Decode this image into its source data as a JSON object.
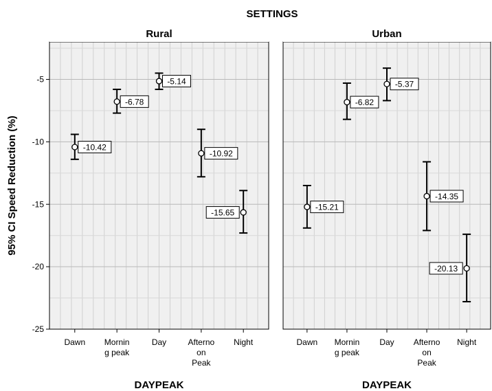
{
  "chart_data": {
    "type": "errorbar",
    "title": "SETTINGS",
    "ylabel": "95% CI Speed Reduction (%)",
    "ylim": [
      -25,
      -2
    ],
    "yticks": [
      -5,
      -10,
      -15,
      -20,
      -25
    ],
    "grid": true,
    "categories": [
      [
        "Dawn"
      ],
      [
        "Mornin",
        "g peak"
      ],
      [
        "Day"
      ],
      [
        "Afterno",
        "on",
        "Peak"
      ],
      [
        "Night"
      ]
    ],
    "panels": [
      {
        "name": "Rural",
        "xlabel": "DAYPEAK",
        "means": [
          -10.42,
          -6.78,
          -5.14,
          -10.92,
          -15.65
        ],
        "lower": [
          -11.4,
          -7.7,
          -5.8,
          -12.8,
          -17.3
        ],
        "upper": [
          -9.4,
          -5.8,
          -4.5,
          -9.0,
          -13.9
        ],
        "labels": [
          "-10.42",
          "-6.78",
          "-5.14",
          "-10.92",
          "-15.65"
        ],
        "label_side": [
          "right",
          "right",
          "right",
          "right",
          "left"
        ]
      },
      {
        "name": "Urban",
        "xlabel": "DAYPEAK",
        "means": [
          -15.21,
          -6.82,
          -5.37,
          -14.35,
          -20.13
        ],
        "lower": [
          -16.9,
          -8.2,
          -6.7,
          -17.1,
          -22.8
        ],
        "upper": [
          -13.5,
          -5.3,
          -4.1,
          -11.6,
          -17.4
        ],
        "labels": [
          "-15.21",
          "-6.82",
          "-5.37",
          "-14.35",
          "-20.13"
        ],
        "label_side": [
          "right",
          "right",
          "right",
          "right",
          "left"
        ]
      }
    ]
  }
}
